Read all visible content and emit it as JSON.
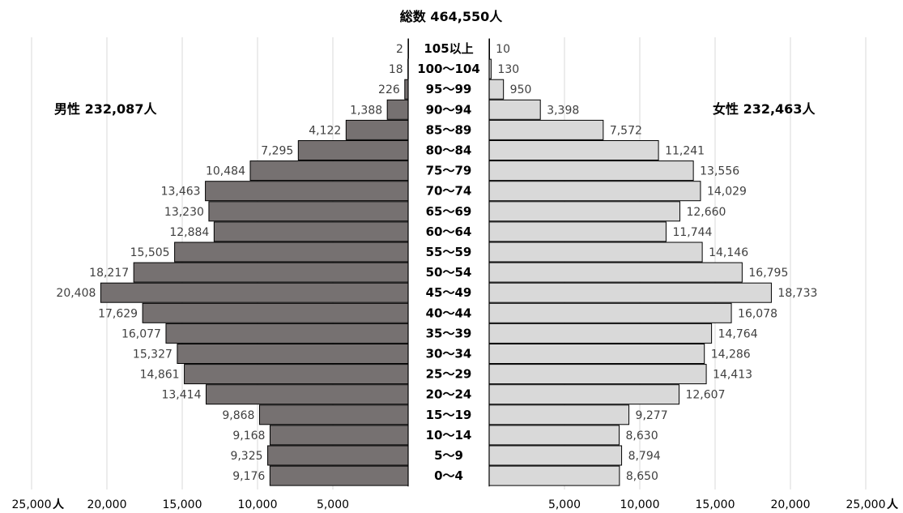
{
  "chart_data": {
    "type": "bar",
    "title": "総数  464,550人",
    "male_label": "男性  232,087人",
    "female_label": "女性  232,463人",
    "unit": "人",
    "xlim": [
      0,
      25000
    ],
    "ticks": [
      "25,000",
      "20,000",
      "15,000",
      "10,000",
      "5,000"
    ],
    "tick_values": [
      25000,
      20000,
      15000,
      10000,
      5000
    ],
    "grid": true,
    "categories": [
      "105以上",
      "100〜104",
      "95〜99",
      "90〜94",
      "85〜89",
      "80〜84",
      "75〜79",
      "70〜74",
      "65〜69",
      "60〜64",
      "55〜59",
      "50〜54",
      "45〜49",
      "40〜44",
      "35〜39",
      "30〜34",
      "25〜29",
      "20〜24",
      "15〜19",
      "10〜14",
      "5〜9",
      "0〜4"
    ],
    "series": [
      {
        "name": "男性",
        "color": "#767171",
        "values": [
          2,
          18,
          226,
          1388,
          4122,
          7295,
          10484,
          13463,
          13230,
          12884,
          15505,
          18217,
          20408,
          17629,
          16077,
          15327,
          14861,
          13414,
          9868,
          9168,
          9325,
          9176
        ],
        "labels": [
          "2",
          "18",
          "226",
          "1,388",
          "4,122",
          "7,295",
          "10,484",
          "13,463",
          "13,230",
          "12,884",
          "15,505",
          "18,217",
          "20,408",
          "17,629",
          "16,077",
          "15,327",
          "14,861",
          "13,414",
          "9,868",
          "9,168",
          "9,325",
          "9,176"
        ]
      },
      {
        "name": "女性",
        "color": "#d9d9d9",
        "values": [
          10,
          130,
          950,
          3398,
          7572,
          11241,
          13556,
          14029,
          12660,
          11744,
          14146,
          16795,
          18733,
          16078,
          14764,
          14286,
          14413,
          12607,
          9277,
          8630,
          8794,
          8650
        ],
        "labels": [
          "10",
          "130",
          "950",
          "3,398",
          "7,572",
          "11,241",
          "13,556",
          "14,029",
          "12,660",
          "11,744",
          "14,146",
          "16,795",
          "18,733",
          "16,078",
          "14,764",
          "14,286",
          "14,413",
          "12,607",
          "9,277",
          "8,630",
          "8,794",
          "8,650"
        ]
      }
    ]
  }
}
